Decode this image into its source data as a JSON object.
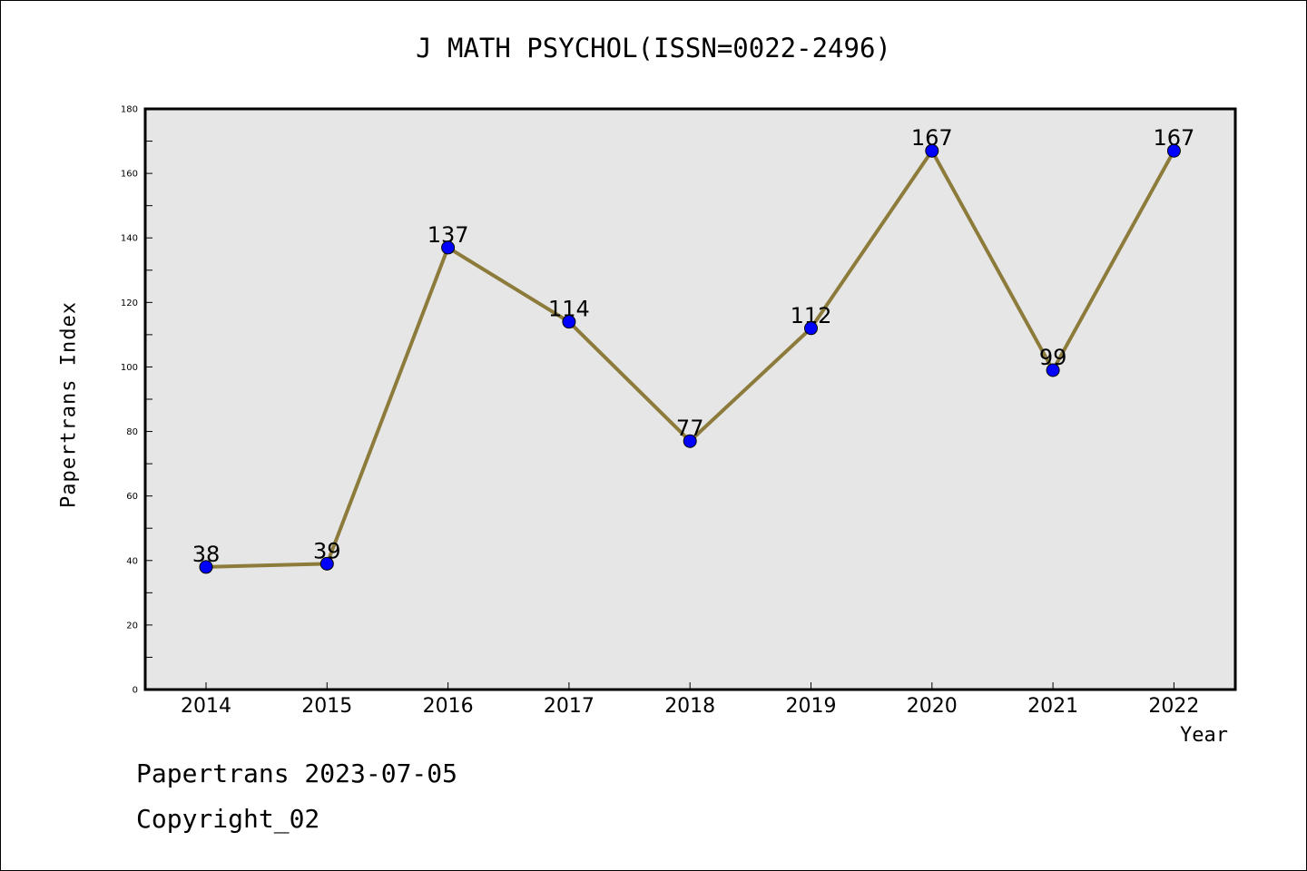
{
  "chart_data": {
    "type": "line",
    "title": "J MATH PSYCHOL(ISSN=0022-2496)",
    "xlabel": "Year",
    "ylabel": "Papertrans Index",
    "categories": [
      "2014",
      "2015",
      "2016",
      "2017",
      "2018",
      "2019",
      "2020",
      "2021",
      "2022"
    ],
    "series": [
      {
        "values": [
          38,
          39,
          137,
          114,
          77,
          112,
          167,
          99,
          167
        ]
      }
    ],
    "data_labels": [
      "38",
      "39",
      "137",
      "114",
      "77",
      "112",
      "167",
      "99",
      "167"
    ],
    "ylim": [
      0,
      180
    ],
    "yticks": [
      "0",
      "20",
      "40",
      "60",
      "80",
      "100",
      "120",
      "140",
      "160",
      "180"
    ],
    "grid": false,
    "line_color": "#8c7b3a",
    "marker_color": "#0000ff",
    "plot_background": "#e6e6e6"
  },
  "footer": {
    "line1": "Papertrans 2023-07-05",
    "line2": "Copyright_02"
  }
}
